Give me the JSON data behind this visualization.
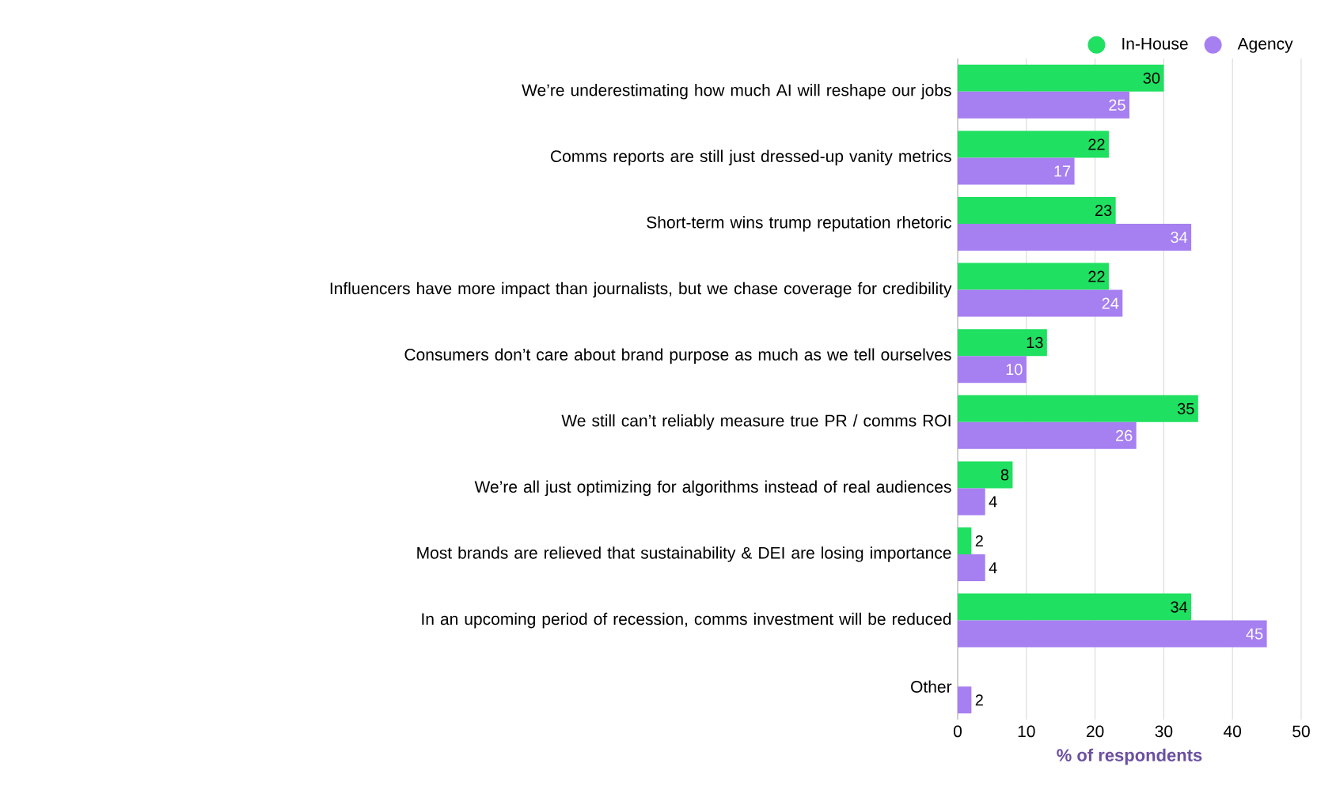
{
  "chart_data": {
    "type": "bar",
    "orientation": "horizontal",
    "xlabel": "% of respondents",
    "categories": [
      "We’re underestimating how much AI will reshape our jobs",
      "Comms reports are still just dressed-up vanity metrics",
      "Short-term wins trump reputation rhetoric",
      "Influencers have more impact than journalists, but we chase coverage for credibility",
      "Consumers don’t care about brand purpose as much as we tell ourselves",
      "We still can’t reliably measure true PR / comms ROI",
      "We’re all just optimizing for algorithms instead of real audiences",
      "Most brands are relieved that sustainability & DEI are losing importance",
      "In an upcoming period of recession, comms investment will be reduced",
      "Other"
    ],
    "series": [
      {
        "name": "In-House",
        "color": "#1fe060",
        "values": [
          30,
          22,
          23,
          22,
          13,
          35,
          8,
          2,
          34,
          null
        ]
      },
      {
        "name": "Agency",
        "color": "#a67ff0",
        "values": [
          25,
          17,
          34,
          24,
          10,
          26,
          4,
          4,
          45,
          2
        ]
      }
    ],
    "xlim": [
      0,
      50
    ],
    "xticks": [
      0,
      10,
      20,
      30,
      40,
      50
    ],
    "grid": "x",
    "legend": "top right",
    "data_labels": true
  }
}
